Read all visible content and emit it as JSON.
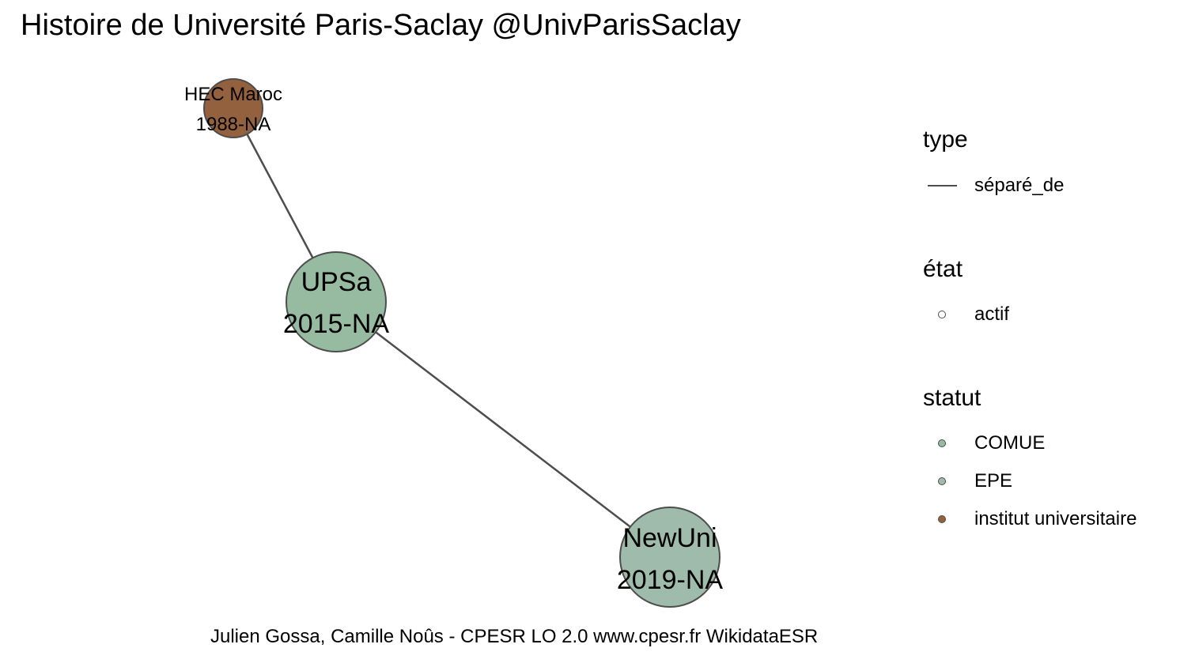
{
  "title": "Histoire de Université Paris-Saclay @UnivParisSaclay",
  "nodes": [
    {
      "id": "hec",
      "name": "HEC Maroc",
      "years": "1988-NA",
      "statut": "institut universitaire",
      "etat": "actif",
      "color": "#94613f"
    },
    {
      "id": "upsa",
      "name": "UPSa",
      "years": "2015-NA",
      "statut": "COMUE",
      "etat": "actif",
      "color": "#97bba0"
    },
    {
      "id": "newuni",
      "name": "NewUni",
      "years": "2019-NA",
      "statut": "EPE",
      "etat": "actif",
      "color": "#9ebbab"
    }
  ],
  "edges": [
    {
      "from": "hec",
      "to": "upsa",
      "type": "séparé_de",
      "color": "#4d4d4d"
    },
    {
      "from": "upsa",
      "to": "newuni",
      "type": "séparé_de",
      "color": "#4d4d4d"
    }
  ],
  "legend": {
    "type": {
      "title": "type",
      "items": [
        {
          "label": "séparé_de",
          "color": "#4d4d4d"
        }
      ]
    },
    "etat": {
      "title": "état",
      "items": [
        {
          "label": "actif"
        }
      ]
    },
    "statut": {
      "title": "statut",
      "items": [
        {
          "label": "COMUE",
          "color": "#97bba0"
        },
        {
          "label": "EPE",
          "color": "#9ebbab"
        },
        {
          "label": "institut universitaire",
          "color": "#94613f"
        }
      ]
    }
  },
  "caption": "Julien Gossa, Camille Noûs - CPESR LO 2.0 www.cpesr.fr WikidataESR"
}
